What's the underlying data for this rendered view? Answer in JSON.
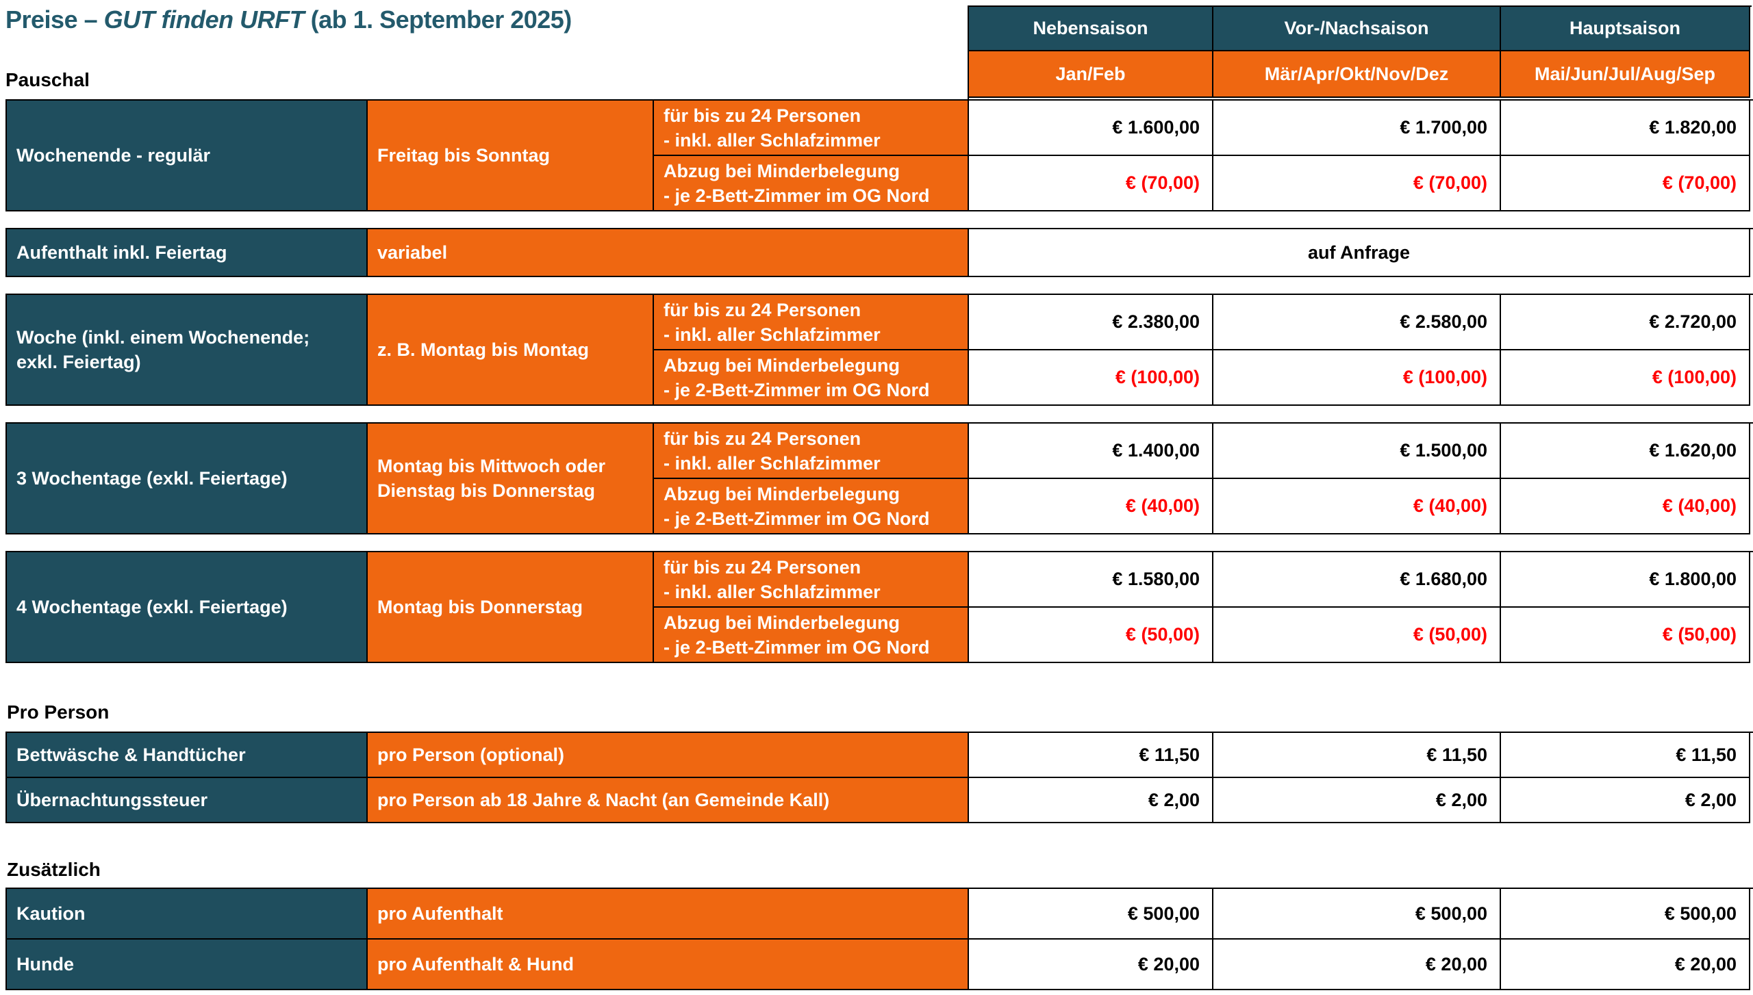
{
  "title": {
    "prefix": "Preise –",
    "italic": "GUT finden URFT",
    "suffix": "(ab 1. September 2025)"
  },
  "colors": {
    "teal": "#1f4e5e",
    "orange": "#ef6711",
    "negative_red": "#ff0000",
    "title_teal": "#235a6c",
    "border_black": "#000000"
  },
  "sections": {
    "pauschal": "Pauschal",
    "pro_person": "Pro Person",
    "zusaetzlich": "Zusätzlich"
  },
  "header": {
    "seasons": [
      {
        "name": "Nebensaison",
        "months": "Jan/Feb"
      },
      {
        "name": "Vor-/Nachsaison",
        "months": "Mär/Apr/Okt/Nov/Dez"
      },
      {
        "name": "Hauptsaison",
        "months": "Mai/Jun/Jul/Aug/Sep"
      }
    ]
  },
  "pauschal_blocks": [
    {
      "label": "Wochenende - regulär",
      "period": "Freitag bis Sonntag",
      "desc_full": "für bis zu 24 Personen\n- inkl. aller Schlafzimmer",
      "desc_reduction": "Abzug bei Minderbelegung\n- je 2-Bett-Zimmer im OG Nord",
      "prices": [
        "€ 1.600,00",
        "€ 1.700,00",
        "€ 1.820,00"
      ],
      "reductions": [
        "€ (70,00)",
        "€ (70,00)",
        "€ (70,00)"
      ]
    },
    {
      "label": "Woche (inkl. einem Wochenende;\nexkl. Feiertag)",
      "period": "z. B. Montag bis Montag",
      "desc_full": "für bis zu 24 Personen\n- inkl. aller Schlafzimmer",
      "desc_reduction": "Abzug bei Minderbelegung\n- je 2-Bett-Zimmer im OG Nord",
      "prices": [
        "€ 2.380,00",
        "€ 2.580,00",
        "€ 2.720,00"
      ],
      "reductions": [
        "€ (100,00)",
        "€ (100,00)",
        "€ (100,00)"
      ]
    },
    {
      "label": "3 Wochentage (exkl. Feiertage)",
      "period": "Montag bis Mittwoch oder\nDienstag bis Donnerstag",
      "desc_full": "für bis zu 24 Personen\n- inkl. aller Schlafzimmer",
      "desc_reduction": "Abzug bei Minderbelegung\n- je 2-Bett-Zimmer im OG Nord",
      "prices": [
        "€ 1.400,00",
        "€ 1.500,00",
        "€ 1.620,00"
      ],
      "reductions": [
        "€ (40,00)",
        "€ (40,00)",
        "€ (40,00)"
      ]
    },
    {
      "label": "4 Wochentage (exkl. Feiertage)",
      "period": "Montag bis Donnerstag",
      "desc_full": "für bis zu 24 Personen\n- inkl. aller Schlafzimmer",
      "desc_reduction": "Abzug bei Minderbelegung\n- je 2-Bett-Zimmer im OG Nord",
      "prices": [
        "€ 1.580,00",
        "€ 1.680,00",
        "€ 1.800,00"
      ],
      "reductions": [
        "€ (50,00)",
        "€ (50,00)",
        "€ (50,00)"
      ]
    }
  ],
  "aufenthalt_row": {
    "label": "Aufenthalt inkl. Feiertag",
    "period": "variabel",
    "value": "auf Anfrage"
  },
  "pro_person_rows": [
    {
      "label": "Bettwäsche & Handtücher",
      "desc": "pro Person (optional)",
      "prices": [
        "€ 11,50",
        "€ 11,50",
        "€ 11,50"
      ]
    },
    {
      "label": "Übernachtungssteuer",
      "desc": "pro Person ab 18 Jahre & Nacht (an Gemeinde Kall)",
      "prices": [
        "€ 2,00",
        "€ 2,00",
        "€ 2,00"
      ]
    }
  ],
  "zusaetzlich_rows": [
    {
      "label": "Kaution",
      "desc": "pro Aufenthalt",
      "prices": [
        "€ 500,00",
        "€ 500,00",
        "€ 500,00"
      ]
    },
    {
      "label": "Hunde",
      "desc": "pro Aufenthalt & Hund",
      "prices": [
        "€ 20,00",
        "€ 20,00",
        "€ 20,00"
      ]
    }
  ]
}
